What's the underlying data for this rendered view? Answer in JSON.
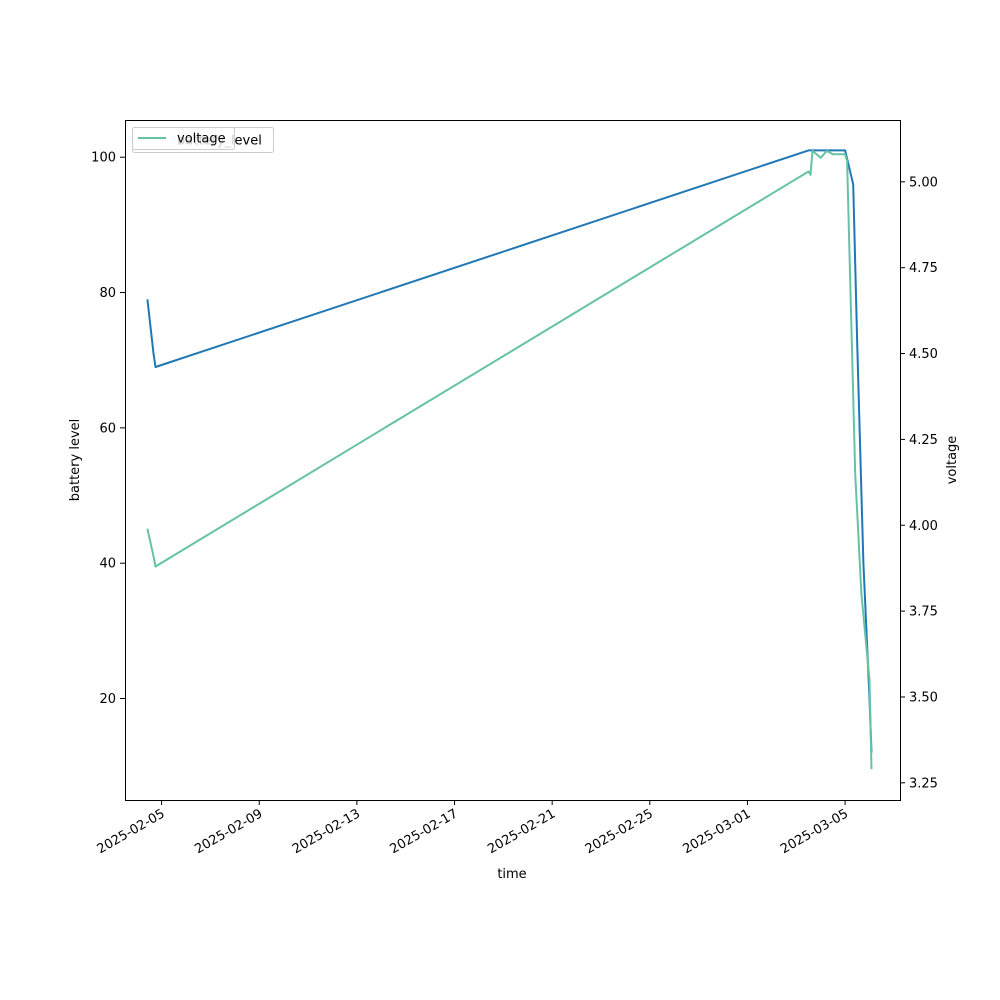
{
  "chart_data": {
    "type": "line",
    "xlabel": "time",
    "ylabel_left": "battery level",
    "ylabel_right": "voltage",
    "x_ticks": [
      "2025-02-05",
      "2025-02-09",
      "2025-02-13",
      "2025-02-17",
      "2025-02-21",
      "2025-02-25",
      "2025-03-01",
      "2025-03-05"
    ],
    "x_range": [
      "2025-02-03T12:00",
      "2025-03-07T06:00"
    ],
    "y_left_range": [
      5,
      105.5
    ],
    "y_left_ticks": [
      "20",
      "40",
      "60",
      "80",
      "100"
    ],
    "y_right_range": [
      3.2,
      5.18
    ],
    "y_right_ticks": [
      "3.25",
      "3.50",
      "3.75",
      "4.00",
      "4.25",
      "4.50",
      "4.75",
      "5.00"
    ],
    "legend": {
      "placement": "upper left",
      "entries": [
        "battery_level",
        "voltage"
      ]
    },
    "colors": {
      "battery_level": "#1f77b4",
      "voltage": "#66c2a5"
    },
    "series": [
      {
        "name": "battery_level",
        "axis": "left",
        "points": [
          [
            "2025-02-04T10:00",
            79
          ],
          [
            "2025-02-04T16:00",
            71
          ],
          [
            "2025-02-04T18:00",
            69
          ],
          [
            "2025-03-03T12:00",
            101
          ],
          [
            "2025-03-04T00:00",
            101
          ],
          [
            "2025-03-05T00:00",
            101
          ],
          [
            "2025-03-05T08:00",
            96
          ],
          [
            "2025-03-05T12:00",
            72
          ],
          [
            "2025-03-05T18:00",
            40
          ],
          [
            "2025-03-06T00:00",
            20
          ],
          [
            "2025-03-06T02:00",
            12
          ]
        ]
      },
      {
        "name": "voltage",
        "axis": "right",
        "points": [
          [
            "2025-02-04T10:00",
            3.99
          ],
          [
            "2025-02-04T16:00",
            3.91
          ],
          [
            "2025-02-04T18:00",
            3.88
          ],
          [
            "2025-03-03T12:00",
            5.03
          ],
          [
            "2025-03-03T14:00",
            5.02
          ],
          [
            "2025-03-03T16:00",
            5.09
          ],
          [
            "2025-03-03T20:00",
            5.08
          ],
          [
            "2025-03-04T00:00",
            5.07
          ],
          [
            "2025-03-04T06:00",
            5.09
          ],
          [
            "2025-03-04T12:00",
            5.08
          ],
          [
            "2025-03-04T18:00",
            5.08
          ],
          [
            "2025-03-05T00:00",
            5.08
          ],
          [
            "2025-03-05T02:00",
            5.06
          ],
          [
            "2025-03-05T06:00",
            4.6
          ],
          [
            "2025-03-05T10:00",
            4.15
          ],
          [
            "2025-03-05T16:00",
            3.8
          ],
          [
            "2025-03-06T00:00",
            3.55
          ],
          [
            "2025-03-06T02:00",
            3.29
          ]
        ]
      }
    ]
  }
}
